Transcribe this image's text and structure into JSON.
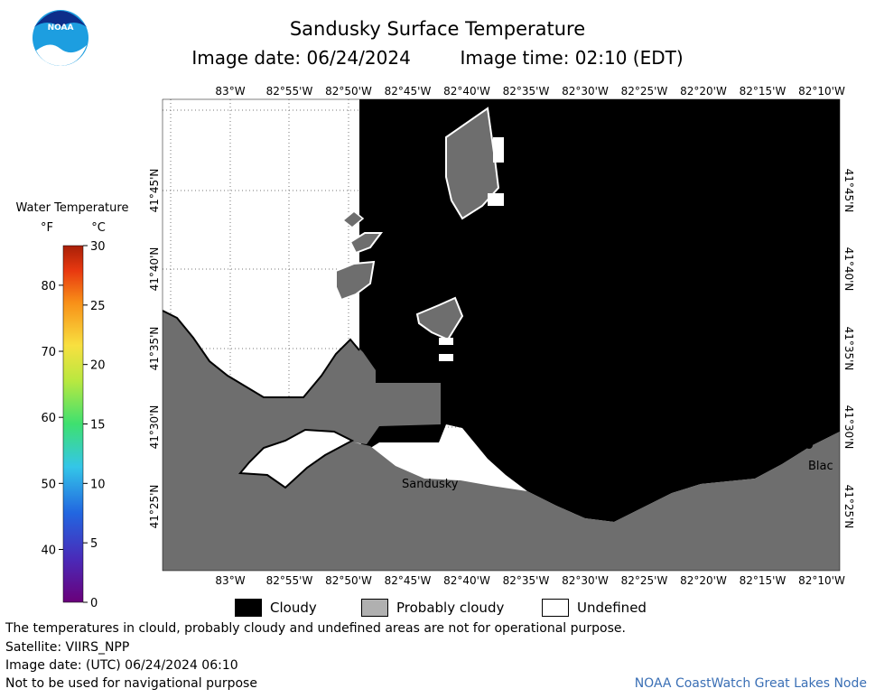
{
  "header": {
    "title": "Sandusky Surface Temperature",
    "image_date": "Image date: 06/24/2024",
    "image_time": "Image time: 02:10 (EDT)"
  },
  "logo": {
    "text": "NOAA"
  },
  "colorbar": {
    "title": "Water Temperature",
    "unit_f": "°F",
    "unit_c": "°C",
    "f_ticks": [
      "40",
      "50",
      "60",
      "70",
      "80"
    ],
    "c_ticks": [
      "0",
      "5",
      "10",
      "15",
      "20",
      "25",
      "30"
    ]
  },
  "map": {
    "lon_labels": [
      "83°W",
      "82°55'W",
      "82°50'W",
      "82°45'W",
      "82°40'W",
      "82°35'W",
      "82°30'W",
      "82°25'W",
      "82°20'W",
      "82°15'W",
      "82°10'W"
    ],
    "lat_labels": [
      "41°25'N",
      "41°30'N",
      "41°35'N",
      "41°40'N",
      "41°45'N"
    ],
    "places": [
      "Sandusky",
      "Blac"
    ]
  },
  "legend": [
    {
      "label": "Cloudy",
      "color": "#000000"
    },
    {
      "label": "Probably cloudy",
      "color": "#b0b0b0"
    },
    {
      "label": "Undefined",
      "color": "#ffffff"
    }
  ],
  "notes": {
    "disclaimer": "The temperatures in clould, probably cloudy and undefined areas are not for operational purpose.",
    "satellite": "Satellite: VIIRS_NPP",
    "utc_date": "Image date: (UTC) 06/24/2024  06:10",
    "navigation": "Not to be used for navigational purpose",
    "credit": "NOAA CoastWatch Great Lakes Node"
  }
}
